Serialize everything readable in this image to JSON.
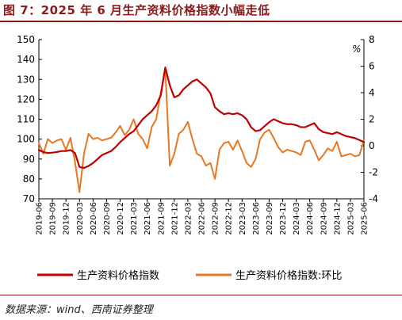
{
  "header": {
    "title": "图 7：2025 年 6 月生产资料价格指数小幅走低"
  },
  "footer": {
    "source": "数据来源：wind、西南证券整理"
  },
  "chart_data": {
    "type": "line",
    "title": "图 7：2025 年 6 月生产资料价格指数小幅走低",
    "y_left": {
      "ylim": [
        70,
        150
      ],
      "ticks": [
        70,
        80,
        90,
        100,
        110,
        120,
        130,
        140,
        150
      ]
    },
    "y_right": {
      "ylim": [
        -4,
        8
      ],
      "ticks": [
        -4,
        -2,
        0,
        2,
        4,
        6,
        8
      ],
      "unit": "%"
    },
    "x_tick_labels": [
      "2019-06",
      "2019-09",
      "2019-12",
      "2020-03",
      "2020-06",
      "2020-09",
      "2020-12",
      "2021-03",
      "2021-06",
      "2021-09",
      "2021-12",
      "2022-03",
      "2022-06",
      "2022-09",
      "2022-12",
      "2023-03",
      "2023-06",
      "2023-09",
      "2023-12",
      "2024-03",
      "2024-06",
      "2024-09",
      "2024-12",
      "2025-03",
      "2025-06"
    ],
    "grid": false,
    "legend_position": "bottom",
    "series": [
      {
        "name": "生产资料价格指数",
        "axis": "left",
        "color": "#c00000",
        "x": [
          "2019-06",
          "2019-07",
          "2019-08",
          "2019-09",
          "2019-10",
          "2019-11",
          "2019-12",
          "2020-01",
          "2020-02",
          "2020-03",
          "2020-04",
          "2020-05",
          "2020-06",
          "2020-07",
          "2020-08",
          "2020-09",
          "2020-10",
          "2020-11",
          "2020-12",
          "2021-01",
          "2021-02",
          "2021-03",
          "2021-04",
          "2021-05",
          "2021-06",
          "2021-07",
          "2021-08",
          "2021-09",
          "2021-10",
          "2021-11",
          "2021-12",
          "2022-01",
          "2022-02",
          "2022-03",
          "2022-04",
          "2022-05",
          "2022-06",
          "2022-07",
          "2022-08",
          "2022-09",
          "2022-10",
          "2022-11",
          "2022-12",
          "2023-01",
          "2023-02",
          "2023-03",
          "2023-04",
          "2023-05",
          "2023-06",
          "2023-07",
          "2023-08",
          "2023-09",
          "2023-10",
          "2023-11",
          "2023-12",
          "2024-01",
          "2024-02",
          "2024-03",
          "2024-04",
          "2024-05",
          "2024-06",
          "2024-07",
          "2024-08",
          "2024-09",
          "2024-10",
          "2024-11",
          "2024-12",
          "2025-01",
          "2025-02",
          "2025-03",
          "2025-04",
          "2025-05",
          "2025-06"
        ],
        "values": [
          94.5,
          93.5,
          93,
          93.2,
          93.5,
          94,
          94,
          94.5,
          93,
          86,
          85.5,
          86.5,
          88,
          90,
          92,
          93,
          94,
          96,
          98.5,
          100.5,
          102.5,
          104,
          107,
          110,
          112,
          114,
          117,
          122,
          136,
          127,
          121,
          122,
          125,
          127,
          129,
          130,
          128,
          126,
          123,
          116,
          114,
          112.5,
          113,
          112.5,
          113,
          112,
          110,
          106,
          104,
          104.5,
          106.5,
          108.5,
          110,
          109,
          108,
          107.5,
          107.5,
          107,
          106,
          106,
          107,
          108,
          105,
          103.5,
          103,
          102.5,
          103.5,
          102.5,
          101.5,
          101,
          100.5,
          99.5,
          98.5
        ]
      },
      {
        "name": "生产资料价格指数:环比",
        "axis": "right",
        "color": "#e87722",
        "x": [
          "2019-06",
          "2019-07",
          "2019-08",
          "2019-09",
          "2019-10",
          "2019-11",
          "2019-12",
          "2020-01",
          "2020-02",
          "2020-03",
          "2020-04",
          "2020-05",
          "2020-06",
          "2020-07",
          "2020-08",
          "2020-09",
          "2020-10",
          "2020-11",
          "2020-12",
          "2021-01",
          "2021-02",
          "2021-03",
          "2021-04",
          "2021-05",
          "2021-06",
          "2021-07",
          "2021-08",
          "2021-09",
          "2021-10",
          "2021-11",
          "2021-12",
          "2022-01",
          "2022-02",
          "2022-03",
          "2022-04",
          "2022-05",
          "2022-06",
          "2022-07",
          "2022-08",
          "2022-09",
          "2022-10",
          "2022-11",
          "2022-12",
          "2023-01",
          "2023-02",
          "2023-03",
          "2023-04",
          "2023-05",
          "2023-06",
          "2023-07",
          "2023-08",
          "2023-09",
          "2023-10",
          "2023-11",
          "2023-12",
          "2024-01",
          "2024-02",
          "2024-03",
          "2024-04",
          "2024-05",
          "2024-06",
          "2024-07",
          "2024-08",
          "2024-09",
          "2024-10",
          "2024-11",
          "2024-12",
          "2025-01",
          "2025-02",
          "2025-03",
          "2025-04",
          "2025-05",
          "2025-06"
        ],
        "values": [
          0.2,
          -0.6,
          0.5,
          0.2,
          0.4,
          0.5,
          -0.3,
          0.6,
          -1.2,
          -3.5,
          -0.6,
          0.9,
          0.5,
          0.6,
          0.4,
          0.5,
          0.6,
          1.0,
          1.5,
          0.8,
          1.2,
          2.0,
          0.9,
          0.5,
          -0.2,
          1.4,
          2.0,
          4.0,
          5.8,
          -1.5,
          -0.6,
          0.9,
          1.2,
          1.8,
          0.5,
          -0.6,
          -0.8,
          -1.5,
          -1.3,
          -2.5,
          -0.3,
          0.2,
          0.3,
          -0.3,
          0.4,
          -0.4,
          -1.3,
          -1.6,
          -1.0,
          0.5,
          1.0,
          1.2,
          0.6,
          -0.1,
          -0.5,
          -0.3,
          -0.4,
          -0.5,
          -0.7,
          0.3,
          0.4,
          -0.3,
          -1.1,
          -0.7,
          -0.2,
          -0.4,
          0.3,
          -0.8,
          -0.7,
          -0.6,
          -0.8,
          -0.7,
          0.4
        ]
      }
    ]
  }
}
